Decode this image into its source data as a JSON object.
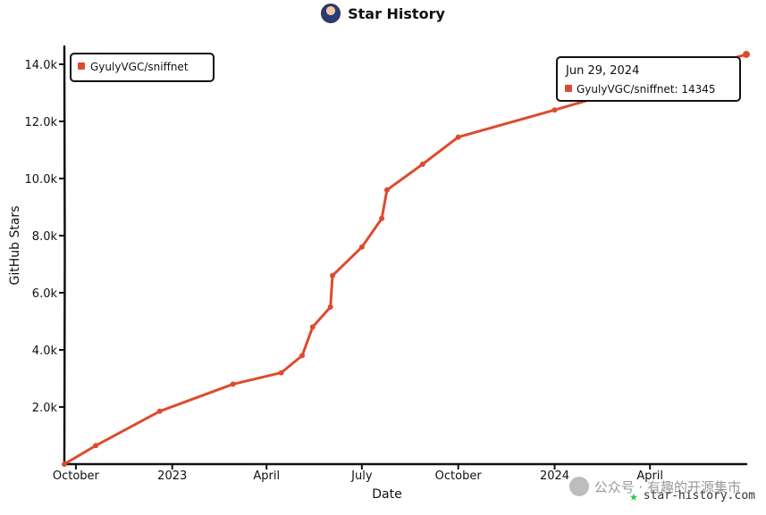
{
  "header": {
    "title": "Star History"
  },
  "legend": {
    "series_label": "GyulyVGC/sniffnet"
  },
  "tooltip": {
    "date": "Jun 29, 2024",
    "text": "GyulyVGC/sniffnet: 14345"
  },
  "watermark": {
    "text": "公众号 · 有趣的开源集市"
  },
  "brand": {
    "text": "star-history.com"
  },
  "colors": {
    "series": "#dd4b2e",
    "axis": "#111111",
    "brand_star": "#2ecc40"
  },
  "chart_data": {
    "type": "line",
    "title": "Star History",
    "xlabel": "Date",
    "ylabel": "GitHub Stars",
    "x_ticks": [
      "October",
      "2023",
      "April",
      "July",
      "October",
      "2024",
      "April"
    ],
    "y_ticks": [
      "2.0k",
      "4.0k",
      "6.0k",
      "8.0k",
      "10.0k",
      "12.0k",
      "14.0k"
    ],
    "ylim": [
      0,
      14000
    ],
    "xlim": [
      "2022-09-20",
      "2024-07-02"
    ],
    "legend_position": "top-left",
    "series": [
      {
        "name": "GyulyVGC/sniffnet",
        "points": [
          {
            "x": "2022-09-20",
            "y": 0
          },
          {
            "x": "2022-10-20",
            "y": 650
          },
          {
            "x": "2022-12-20",
            "y": 1850
          },
          {
            "x": "2023-02-28",
            "y": 2800
          },
          {
            "x": "2023-04-15",
            "y": 3200
          },
          {
            "x": "2023-05-05",
            "y": 3800
          },
          {
            "x": "2023-05-15",
            "y": 4800
          },
          {
            "x": "2023-06-01",
            "y": 5500
          },
          {
            "x": "2023-06-03",
            "y": 6600
          },
          {
            "x": "2023-07-01",
            "y": 7600
          },
          {
            "x": "2023-07-20",
            "y": 8600
          },
          {
            "x": "2023-07-25",
            "y": 9600
          },
          {
            "x": "2023-08-28",
            "y": 10500
          },
          {
            "x": "2023-10-01",
            "y": 11450
          },
          {
            "x": "2024-01-01",
            "y": 12400
          },
          {
            "x": "2024-07-02",
            "y": 14345
          }
        ]
      }
    ]
  }
}
